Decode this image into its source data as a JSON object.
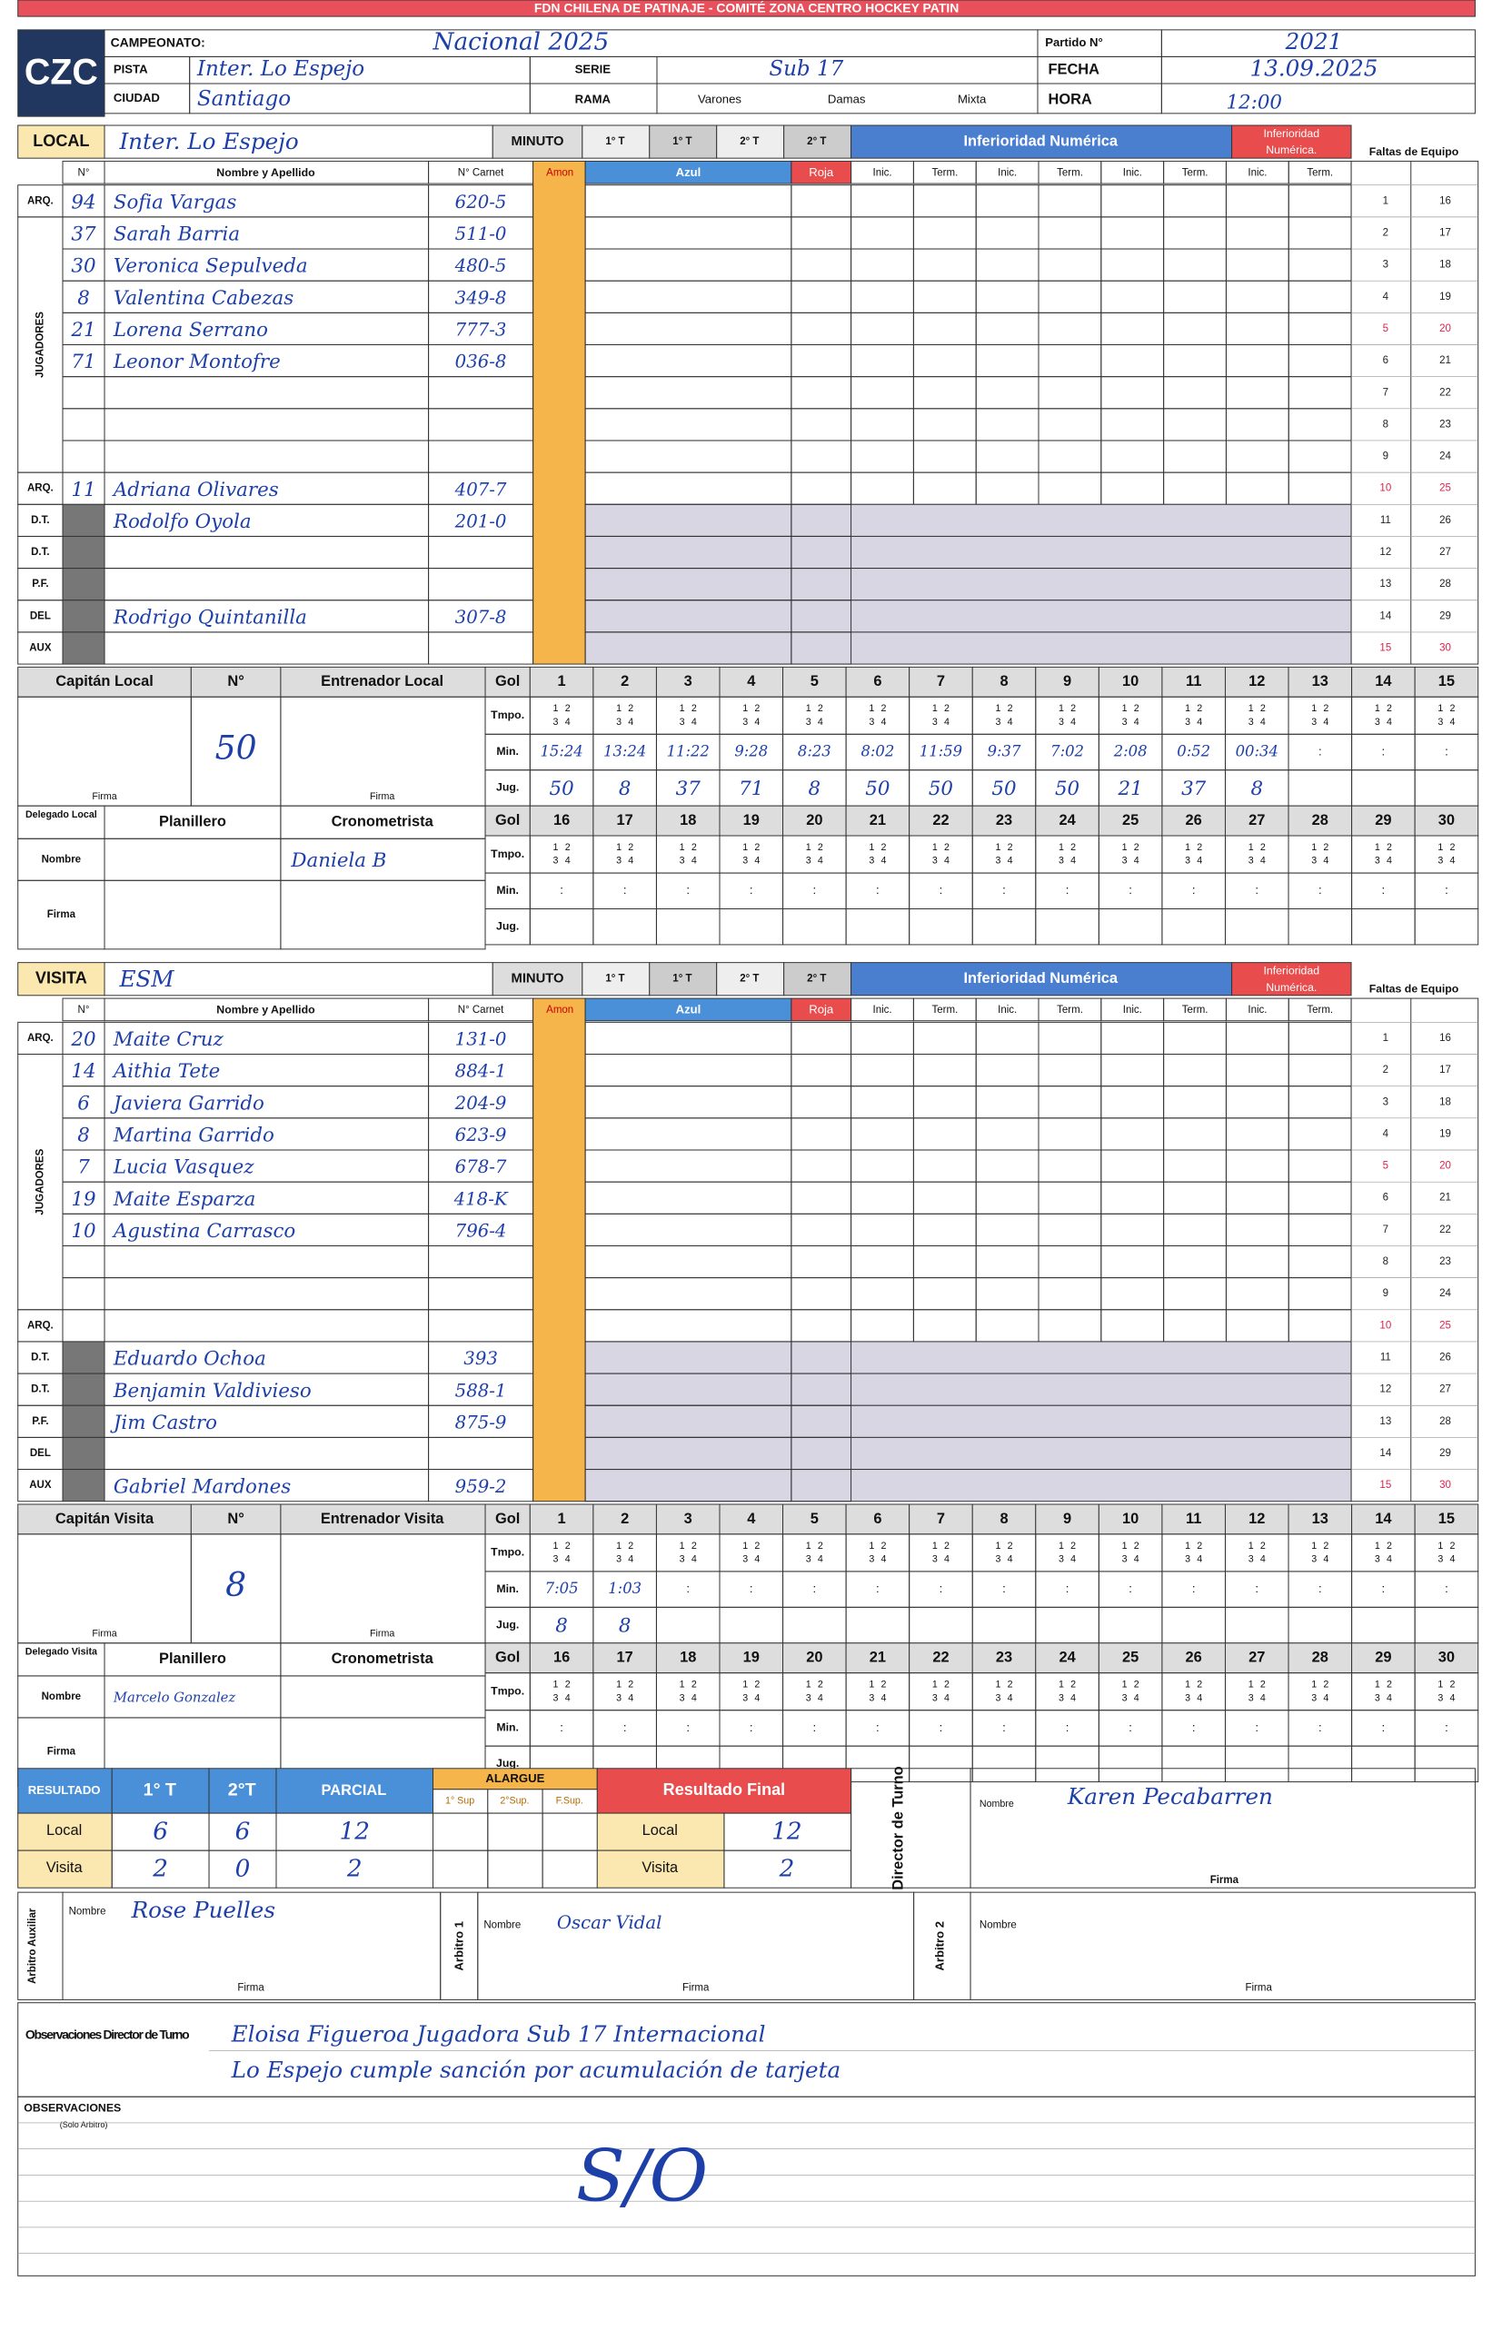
{
  "header": {
    "banner": "FDN CHILENA DE PATINAJE - COMITÉ ZONA CENTRO HOCKEY PATIN",
    "logo": "CZC",
    "campeonato_label": "CAMPEONATO:",
    "campeonato": "Nacional 2025",
    "pista_label": "PISTA",
    "pista": "Inter. Lo Espejo",
    "ciudad_label": "CIUDAD",
    "ciudad": "Santiago",
    "serie_label": "SERIE",
    "serie": "Sub 17",
    "rama_label": "RAMA",
    "rama_options": [
      "Varones",
      "Damas",
      "Mixta"
    ],
    "partido_label": "Partido N°",
    "partido": "2021",
    "fecha_label": "FECHA",
    "fecha": "13.09.2025",
    "hora_label": "HORA",
    "hora": "12:00"
  },
  "form": {
    "minuto": "MINUTO",
    "periods": [
      "1° T",
      "1° T",
      "2° T",
      "2° T"
    ],
    "inferioridad": "Inferioridad Numérica",
    "inferioridad_red": [
      "Inferioridad",
      "Numérica."
    ],
    "faltas": "Faltas de Equipo",
    "col_numero": "N°",
    "col_nombre": "Nombre y Apellido",
    "col_carnet": "N° Carnet",
    "col_amon": "Amon",
    "col_azul": "Azul",
    "col_roja": "Roja",
    "inic": "Inic.",
    "term": "Term.",
    "jugadores": "JUGADORES",
    "roles": [
      "ARQ.",
      "ARQ.",
      "D.T.",
      "D.T.",
      "P.F.",
      "DEL",
      "AUX"
    ],
    "foul_numbers": [
      1,
      2,
      3,
      4,
      5,
      6,
      7,
      8,
      9,
      10,
      11,
      12,
      13,
      14,
      15,
      16,
      17,
      18,
      19,
      20,
      21,
      22,
      23,
      24,
      25,
      26,
      27,
      28,
      29,
      30
    ],
    "gol": "Gol",
    "tmpo": "Tmpo.",
    "min": "Min.",
    "jug": "Jug.",
    "goal_numbers": [
      1,
      2,
      3,
      4,
      5,
      6,
      7,
      8,
      9,
      10,
      11,
      12,
      13,
      14,
      15,
      16,
      17,
      18,
      19,
      20,
      21,
      22,
      23,
      24,
      25,
      26,
      27,
      28,
      29,
      30
    ],
    "quarters": [
      "1",
      "2",
      "3",
      "4"
    ],
    "min_separator": ":",
    "numero": "N°",
    "firma": "Firma",
    "nombre": "Nombre",
    "planillero": "Planillero",
    "cronometrista": "Cronometrista"
  },
  "local": {
    "label": "LOCAL",
    "team": "Inter. Lo Espejo",
    "rows": [
      {
        "number": "94",
        "name": "Sofia Vargas",
        "carnet": "620-5"
      },
      {
        "number": "37",
        "name": "Sarah Barria",
        "carnet": "511-0"
      },
      {
        "number": "30",
        "name": "Veronica Sepulveda",
        "carnet": "480-5"
      },
      {
        "number": "8",
        "name": "Valentina Cabezas",
        "carnet": "349-8"
      },
      {
        "number": "21",
        "name": "Lorena Serrano",
        "carnet": "777-3"
      },
      {
        "number": "71",
        "name": "Leonor Montofre",
        "carnet": "036-8"
      },
      {},
      {},
      {},
      {
        "number": "11",
        "name": "Adriana Olivares",
        "carnet": "407-7"
      },
      {
        "name": "Rodolfo Oyola",
        "carnet": "201-0"
      },
      {},
      {},
      {
        "name": "Rodrigo Quintanilla",
        "carnet": "307-8"
      },
      {}
    ],
    "goals": {
      "minutes": [
        "15:24",
        "13:24",
        "11:22",
        "9:28",
        "8:23",
        "8:02",
        "11:59",
        "9:37",
        "7:02",
        "2:08",
        "0:52",
        "00:34"
      ],
      "players": [
        "50",
        "8",
        "37",
        "71",
        "8",
        "50",
        "50",
        "50",
        "50",
        "21",
        "37",
        "8"
      ]
    },
    "captain_label": "Capitán Local",
    "captain_number": "50",
    "coach_label": "Entrenador Local",
    "delegate_label": "Delegado Local",
    "cronometrista": "Daniela B"
  },
  "visita": {
    "label": "VISITA",
    "team": "ESM",
    "rows": [
      {
        "number": "20",
        "name": "Maite Cruz",
        "carnet": "131-0"
      },
      {
        "number": "14",
        "name": "Aithia Tete",
        "carnet": "884-1"
      },
      {
        "number": "6",
        "name": "Javiera Garrido",
        "carnet": "204-9"
      },
      {
        "number": "8",
        "name": "Martina Garrido",
        "carnet": "623-9"
      },
      {
        "number": "7",
        "name": "Lucia Vasquez",
        "carnet": "678-7"
      },
      {
        "number": "19",
        "name": "Maite Esparza",
        "carnet": "418-K"
      },
      {
        "number": "10",
        "name": "Agustina Carrasco",
        "carnet": "796-4"
      },
      {},
      {},
      {},
      {
        "name": "Eduardo Ochoa",
        "carnet": "393"
      },
      {
        "name": "Benjamin Valdivieso",
        "carnet": "588-1"
      },
      {
        "name": "Jim Castro",
        "carnet": "875-9"
      },
      {},
      {
        "name": "Gabriel Mardones",
        "carnet": "959-2"
      }
    ],
    "goals": {
      "minutes": [
        "7:05",
        "1:03"
      ],
      "players": [
        "8",
        "8"
      ]
    },
    "captain_label": "Capitán Visita",
    "captain_number": "8",
    "coach_label": "Entrenador Visita",
    "delegate_label": "Delegado Visita",
    "planillero": "Marcelo Gonzalez"
  },
  "result": {
    "resultado": "RESULTADO",
    "first": "1° T",
    "second": "2°T",
    "parcial": "PARCIAL",
    "alargue": "ALARGUE",
    "alargue_cols": [
      "1° Sup",
      "2°Sup.",
      "F.Sup."
    ],
    "final": "Resultado Final",
    "local": "Local",
    "visita": "Visita",
    "local_scores": [
      "6",
      "6",
      "12"
    ],
    "visita_scores": [
      "2",
      "0",
      "2"
    ],
    "final_local": "12",
    "final_visita": "2",
    "director_label": "Director de Turno",
    "director": "Karen Pecabarren"
  },
  "officials": {
    "aux_label": "Arbitro Auxiliar",
    "aux": "Rose Puelles",
    "arbitro1_label": "Arbitro 1",
    "arbitro1": "Oscar Vidal",
    "arbitro2_label": "Arbitro 2"
  },
  "observations": {
    "director_label": "Observaciones Director de Turno",
    "director_lines": [
      "Eloisa Figueroa   Jugadora   Sub 17   Internacional",
      "Lo Espejo   cumple   sanción   por   acumulación de tarjeta"
    ],
    "arbitro_label": "OBSERVACIONES",
    "arbitro_sub": "(Solo Arbitro)",
    "arbitro": "S/O"
  }
}
